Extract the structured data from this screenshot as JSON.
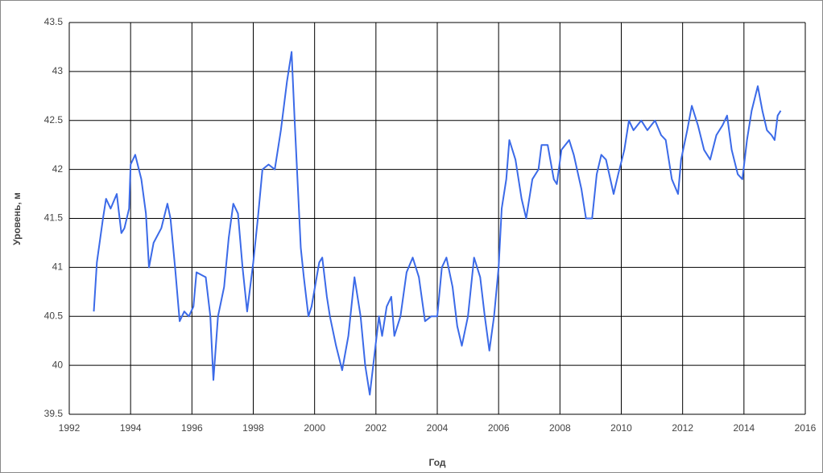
{
  "chart_data": {
    "type": "line",
    "x_label": "Год",
    "y_label": "Уровень, м",
    "xlim": [
      1992,
      2016
    ],
    "xticks": [
      1992,
      1994,
      1996,
      1998,
      2000,
      2002,
      2004,
      2006,
      2008,
      2010,
      2012,
      2014,
      2016
    ],
    "ylim": [
      39.5,
      43.5
    ],
    "yticks": [
      39.5,
      40,
      40.5,
      41,
      41.5,
      42,
      42.5,
      43,
      43.5
    ],
    "grid": true,
    "color": "#3b6ae8",
    "x": [
      1992.8,
      1992.9,
      1993.1,
      1993.2,
      1993.35,
      1993.55,
      1993.7,
      1993.8,
      1993.95,
      1994.0,
      1994.15,
      1994.35,
      1994.5,
      1994.6,
      1994.75,
      1995.0,
      1995.2,
      1995.3,
      1995.45,
      1995.6,
      1995.75,
      1995.9,
      1996.05,
      1996.15,
      1996.45,
      1996.6,
      1996.7,
      1996.85,
      1997.05,
      1997.2,
      1997.35,
      1997.5,
      1997.65,
      1997.8,
      1998.0,
      1998.15,
      1998.3,
      1998.5,
      1998.7,
      1998.9,
      1999.1,
      1999.25,
      1999.35,
      1999.55,
      1999.65,
      1999.8,
      1999.9,
      2000.15,
      2000.25,
      2000.4,
      2000.5,
      2000.7,
      2000.9,
      2001.1,
      2001.2,
      2001.3,
      2001.5,
      2001.65,
      2001.8,
      2001.95,
      2002.1,
      2002.2,
      2002.35,
      2002.5,
      2002.6,
      2002.8,
      2003.0,
      2003.2,
      2003.4,
      2003.6,
      2003.8,
      2004.0,
      2004.15,
      2004.3,
      2004.5,
      2004.65,
      2004.8,
      2005.0,
      2005.2,
      2005.4,
      2005.55,
      2005.7,
      2005.85,
      2006.0,
      2006.1,
      2006.25,
      2006.35,
      2006.55,
      2006.75,
      2006.9,
      2007.1,
      2007.3,
      2007.4,
      2007.6,
      2007.8,
      2007.9,
      2008.05,
      2008.3,
      2008.45,
      2008.7,
      2008.85,
      2009.05,
      2009.2,
      2009.35,
      2009.5,
      2009.75,
      2009.9,
      2010.1,
      2010.25,
      2010.4,
      2010.65,
      2010.85,
      2011.1,
      2011.3,
      2011.45,
      2011.65,
      2011.85,
      2011.95,
      2012.15,
      2012.3,
      2012.5,
      2012.7,
      2012.9,
      2013.1,
      2013.3,
      2013.45,
      2013.6,
      2013.8,
      2013.95,
      2014.1,
      2014.25,
      2014.45,
      2014.6,
      2014.75,
      2014.9,
      2015.0,
      2015.1,
      2015.2
    ],
    "values": [
      40.55,
      41.05,
      41.5,
      41.7,
      41.6,
      41.75,
      41.35,
      41.4,
      41.6,
      42.05,
      42.15,
      41.9,
      41.55,
      41.0,
      41.25,
      41.4,
      41.65,
      41.5,
      41.0,
      40.45,
      40.55,
      40.5,
      40.6,
      40.95,
      40.9,
      40.5,
      39.85,
      40.5,
      40.8,
      41.3,
      41.65,
      41.55,
      41.0,
      40.55,
      41.05,
      41.5,
      42.0,
      42.05,
      42.0,
      42.4,
      42.9,
      43.2,
      42.5,
      41.2,
      40.9,
      40.5,
      40.6,
      41.05,
      41.1,
      40.7,
      40.5,
      40.2,
      39.95,
      40.3,
      40.6,
      40.9,
      40.5,
      40.0,
      39.7,
      40.1,
      40.5,
      40.3,
      40.6,
      40.7,
      40.3,
      40.5,
      40.95,
      41.1,
      40.9,
      40.45,
      40.5,
      40.5,
      41.0,
      41.1,
      40.8,
      40.4,
      40.2,
      40.5,
      41.1,
      40.9,
      40.5,
      40.15,
      40.5,
      41.0,
      41.6,
      41.9,
      42.3,
      42.1,
      41.7,
      41.5,
      41.9,
      42.0,
      42.25,
      42.25,
      41.9,
      41.85,
      42.2,
      42.3,
      42.15,
      41.8,
      41.5,
      41.5,
      41.95,
      42.15,
      42.1,
      41.75,
      41.95,
      42.2,
      42.5,
      42.4,
      42.5,
      42.4,
      42.5,
      42.35,
      42.3,
      41.9,
      41.75,
      42.1,
      42.4,
      42.65,
      42.45,
      42.2,
      42.1,
      42.35,
      42.45,
      42.55,
      42.2,
      41.95,
      41.9,
      42.3,
      42.6,
      42.85,
      42.6,
      42.4,
      42.35,
      42.3,
      42.55,
      42.6
    ]
  }
}
